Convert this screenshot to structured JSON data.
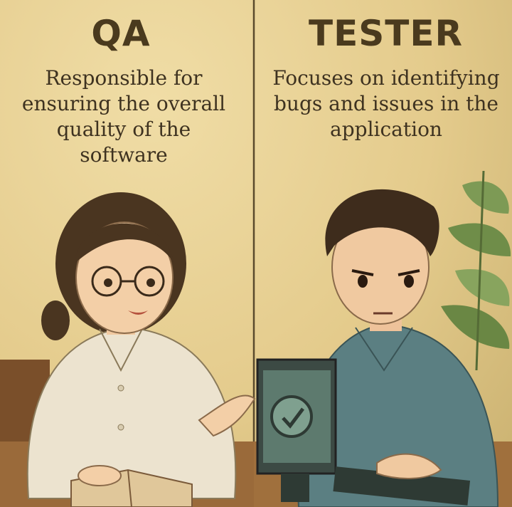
{
  "panels": {
    "left": {
      "title": "QA",
      "description": "Responsible for ensuring the overall quality of the software"
    },
    "right": {
      "title": "TESTER",
      "description": "Focuses on identifying bugs and issues in the application"
    }
  },
  "colors": {
    "background": "#e4cb8c",
    "text": "#3e3220",
    "shirt_left": "#ece3cf",
    "shirt_right": "#5b7f82"
  }
}
